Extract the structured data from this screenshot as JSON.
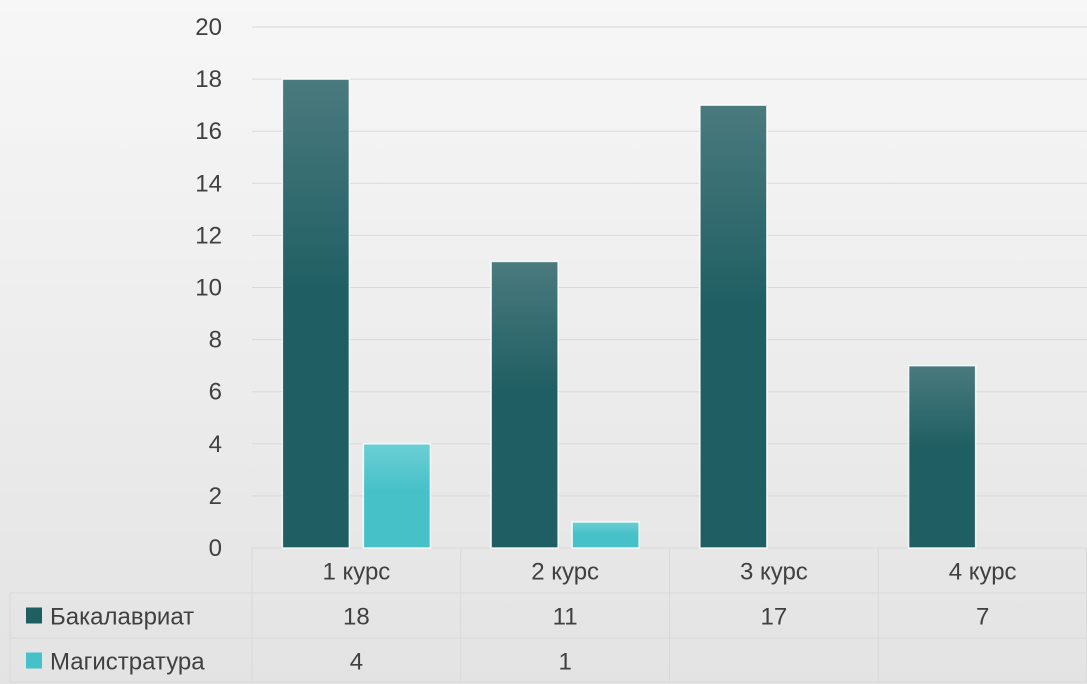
{
  "chart_data": {
    "type": "bar",
    "categories": [
      "1 курс",
      "2 курс",
      "3 курс",
      "4 курс"
    ],
    "series": [
      {
        "name": "Бакалавриат",
        "values": [
          18,
          11,
          17,
          7
        ],
        "color": "#1f5f63",
        "color_light": "#4a7a7e"
      },
      {
        "name": "Магистратура",
        "values": [
          4,
          1,
          null,
          null
        ],
        "color": "#47c1c8",
        "color_light": "#6bcfd4"
      }
    ],
    "ylim": [
      0,
      20
    ],
    "yticks": [
      0,
      2,
      4,
      6,
      8,
      10,
      12,
      14,
      16,
      18,
      20
    ],
    "grid": true,
    "data_table": true,
    "grid_color": "#d9d9d9",
    "text_color": "#404040"
  }
}
